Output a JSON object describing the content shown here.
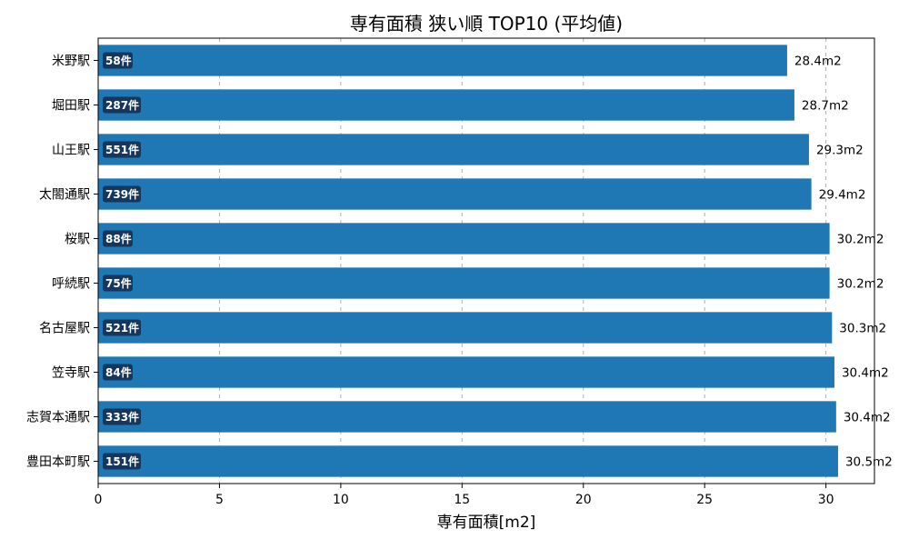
{
  "chart_data": {
    "type": "bar",
    "orientation": "horizontal",
    "title": "専有面積 狭い順 TOP10 (平均値)",
    "xlabel": "専有面積[m2]",
    "ylabel": "",
    "xlim": [
      0,
      32
    ],
    "xticks": [
      0,
      5,
      10,
      15,
      20,
      25,
      30
    ],
    "grid": "x-dashed",
    "bar_color": "#1f77b4",
    "badge_color": "#17365c",
    "categories": [
      "米野駅",
      "堀田駅",
      "山王駅",
      "太閤通駅",
      "桜駅",
      "呼続駅",
      "名古屋駅",
      "笠寺駅",
      "志賀本通駅",
      "豊田本町駅"
    ],
    "values": [
      28.4,
      28.7,
      29.3,
      29.4,
      30.15,
      30.15,
      30.25,
      30.35,
      30.42,
      30.5
    ],
    "value_labels": [
      "28.4m2",
      "28.7m2",
      "29.3m2",
      "29.4m2",
      "30.2m2",
      "30.2m2",
      "30.3m2",
      "30.4m2",
      "30.4m2",
      "30.5m2"
    ],
    "counts": [
      "58件",
      "287件",
      "551件",
      "739件",
      "88件",
      "75件",
      "521件",
      "84件",
      "333件",
      "151件"
    ]
  }
}
